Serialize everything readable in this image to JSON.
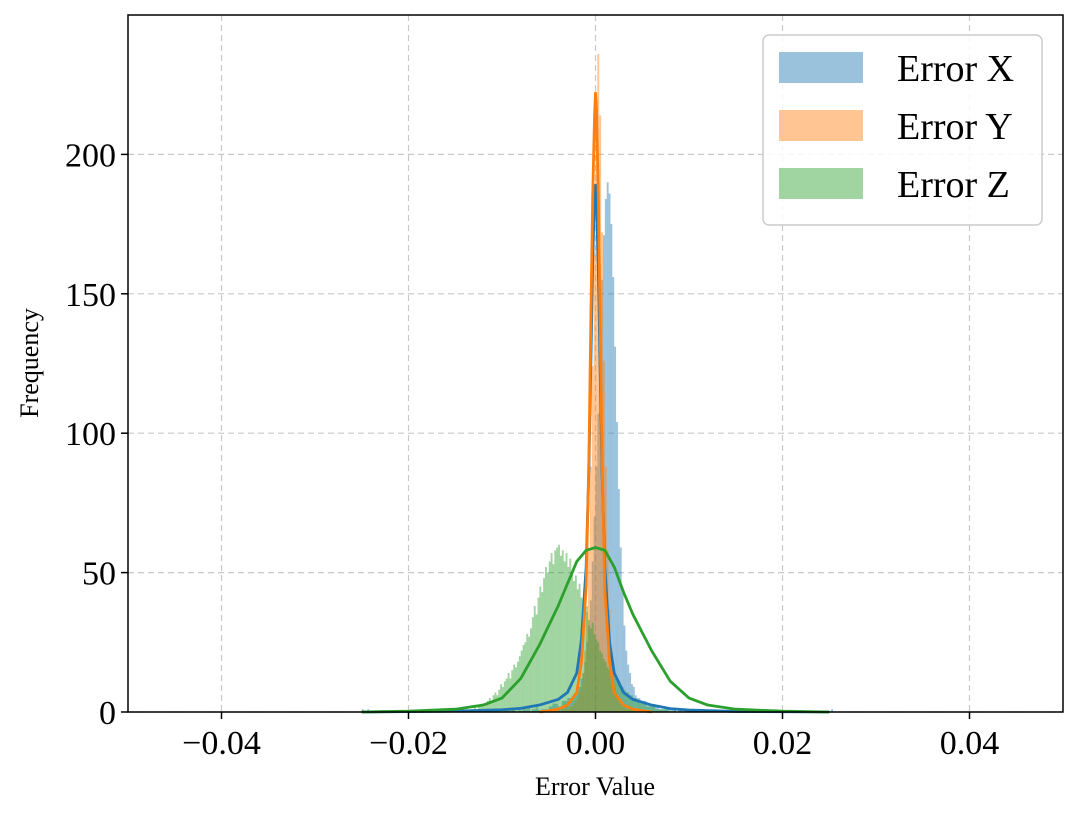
{
  "chart_data": {
    "type": "histogram",
    "title": "",
    "xlabel": "Error Value",
    "ylabel": "Frequency",
    "xlim": [
      -0.05,
      0.05
    ],
    "ylim": [
      0,
      250
    ],
    "x_ticks": [
      {
        "value": -0.04,
        "label": "−0.04"
      },
      {
        "value": -0.02,
        "label": "−0.02"
      },
      {
        "value": 0.0,
        "label": "0.00"
      },
      {
        "value": 0.02,
        "label": "0.02"
      },
      {
        "value": 0.04,
        "label": "0.04"
      }
    ],
    "y_ticks": [
      {
        "value": 0,
        "label": "0"
      },
      {
        "value": 50,
        "label": "50"
      },
      {
        "value": 100,
        "label": "100"
      },
      {
        "value": 150,
        "label": "150"
      },
      {
        "value": 200,
        "label": "200"
      }
    ],
    "grid": true,
    "legend_position": "top-right",
    "series": [
      {
        "name": "Error X",
        "color": "#1f77b4",
        "histogram": {
          "bin_start": -0.025,
          "bin_width": 0.0002,
          "counts": [
            1,
            0,
            0,
            1,
            0,
            0,
            0,
            0,
            0,
            0,
            0,
            0,
            0,
            0,
            0,
            0,
            0,
            0,
            0,
            0,
            0,
            0,
            0,
            0,
            0,
            0,
            0,
            0,
            0,
            0,
            0,
            0,
            0,
            0,
            0,
            0,
            0,
            0,
            1,
            0,
            0,
            0,
            0,
            0,
            1,
            0,
            0,
            0,
            0,
            0,
            0,
            0,
            0,
            0,
            0,
            0,
            0,
            0,
            0,
            1,
            1,
            0,
            0,
            0,
            0,
            1,
            0,
            0,
            1,
            0,
            0,
            1,
            1,
            0,
            0,
            0,
            1,
            1,
            1,
            0,
            1,
            1,
            0,
            0,
            1,
            0,
            1,
            1,
            1,
            2,
            0,
            1,
            1,
            2,
            1,
            0,
            1,
            1,
            1,
            1,
            2,
            2,
            3,
            3,
            3,
            2,
            2,
            4,
            4,
            4,
            5,
            5,
            4,
            5,
            6,
            10,
            9,
            12,
            14,
            18,
            25,
            31,
            40,
            54,
            70,
            88,
            107,
            132,
            155,
            171,
            184,
            190,
            186,
            175,
            156,
            131,
            104,
            80,
            59,
            43,
            31,
            22,
            17,
            14,
            10,
            9,
            6,
            5,
            5,
            4,
            4,
            4,
            3,
            3,
            3,
            2,
            2,
            2,
            2,
            1,
            1,
            1,
            1,
            1,
            1,
            0,
            1,
            1,
            0,
            1,
            1,
            0,
            1,
            1,
            0,
            1,
            0,
            0,
            1,
            0,
            0,
            1,
            0,
            0,
            0,
            0,
            0,
            0,
            1,
            0,
            0,
            0,
            0,
            0,
            0,
            0,
            0,
            0,
            0,
            0,
            0,
            0,
            0,
            0,
            0,
            0,
            0,
            0,
            0,
            0,
            0,
            0,
            0,
            0,
            0,
            0,
            0,
            0,
            0,
            0,
            0,
            1,
            0,
            0,
            0,
            0,
            0,
            0,
            0,
            0,
            0,
            0,
            0,
            0,
            0,
            0,
            0,
            0,
            0,
            0,
            0,
            0,
            0,
            0,
            0,
            0,
            0,
            0,
            0,
            0,
            0,
            1
          ]
        },
        "kde": {
          "x": [
            -0.025,
            -0.015,
            -0.01,
            -0.008,
            -0.006,
            -0.004,
            -0.003,
            -0.002,
            -0.0015,
            -0.001,
            -0.0007,
            -0.0005,
            -0.0003,
            -0.0001,
            0.0,
            0.0001,
            0.0003,
            0.0005,
            0.0007,
            0.001,
            0.0015,
            0.002,
            0.003,
            0.004,
            0.006,
            0.008,
            0.01,
            0.015,
            0.025
          ],
          "y": [
            0,
            0.3,
            0.8,
            1.3,
            2.5,
            4.5,
            7,
            14,
            26,
            52,
            88,
            125,
            162,
            186,
            189,
            184,
            160,
            122,
            86,
            52,
            25,
            14,
            7,
            4.5,
            2.5,
            1.2,
            0.7,
            0.2,
            0
          ]
        }
      },
      {
        "name": "Error Y",
        "color": "#ff7f0e",
        "histogram": {
          "bin_start": -0.01,
          "bin_width": 0.0002,
          "counts": [
            0,
            0,
            0,
            0,
            0,
            0,
            0,
            0,
            0,
            0,
            0,
            0,
            0,
            0,
            0,
            0,
            0,
            0,
            0,
            0,
            0,
            0,
            0,
            0,
            0,
            0,
            0,
            0,
            0,
            0,
            1,
            0,
            1,
            1,
            2,
            1,
            2,
            2,
            3,
            4,
            5,
            7,
            9,
            14,
            22,
            36,
            58,
            88,
            124,
            165,
            205,
            236,
            214,
            172,
            126,
            88,
            58,
            37,
            22,
            14,
            9,
            6,
            4,
            3,
            2,
            2,
            1,
            1,
            1,
            1,
            0,
            0,
            0,
            0,
            0,
            0,
            0,
            0,
            0,
            0,
            0,
            0,
            0,
            0,
            0,
            0,
            0,
            0,
            0,
            0,
            0,
            0,
            0,
            0,
            0,
            0,
            0,
            0,
            0,
            0
          ]
        },
        "kde": {
          "x": [
            -0.006,
            -0.004,
            -0.003,
            -0.002,
            -0.0015,
            -0.001,
            -0.0007,
            -0.0005,
            -0.0003,
            -0.0001,
            0.0,
            0.0001,
            0.0003,
            0.0005,
            0.0007,
            0.001,
            0.0015,
            0.002,
            0.003,
            0.004,
            0.006
          ],
          "y": [
            0,
            1,
            2.5,
            7,
            18,
            45,
            92,
            140,
            185,
            214,
            222,
            216,
            186,
            138,
            90,
            44,
            18,
            7,
            2.5,
            1,
            0
          ]
        }
      },
      {
        "name": "Error Z",
        "color": "#2ca02c",
        "histogram": {
          "bin_start": -0.014,
          "bin_width": 0.0002,
          "counts": [
            0,
            1,
            0,
            1,
            1,
            2,
            1,
            2,
            2,
            3,
            2,
            3,
            4,
            5,
            4,
            6,
            7,
            6,
            8,
            10,
            9,
            11,
            12,
            14,
            12,
            15,
            17,
            16,
            18,
            20,
            22,
            24,
            25,
            28,
            27,
            30,
            34,
            38,
            35,
            41,
            45,
            43,
            48,
            52,
            50,
            54,
            57,
            53,
            58,
            59,
            60,
            56,
            58,
            54,
            57,
            52,
            55,
            50,
            47,
            49,
            44,
            46,
            41,
            39,
            36,
            38,
            33,
            30,
            32,
            28,
            26,
            25,
            22,
            21,
            19,
            18,
            16,
            15,
            14,
            13,
            12,
            11,
            10,
            9,
            9,
            8,
            7,
            7,
            6,
            6,
            5,
            5,
            4,
            4,
            3,
            3,
            3,
            2,
            2,
            2,
            2,
            2,
            1,
            1,
            1,
            1,
            1,
            1,
            1,
            0,
            1,
            0,
            1,
            0,
            0,
            1,
            0,
            0,
            0,
            0
          ]
        },
        "kde": {
          "x": [
            -0.025,
            -0.02,
            -0.015,
            -0.012,
            -0.01,
            -0.008,
            -0.006,
            -0.004,
            -0.003,
            -0.002,
            -0.001,
            0.0,
            0.001,
            0.002,
            0.003,
            0.004,
            0.006,
            0.008,
            0.01,
            0.012,
            0.015,
            0.02,
            0.025
          ],
          "y": [
            0,
            0.3,
            1,
            2.5,
            5,
            12,
            24,
            38,
            46,
            54,
            58,
            59,
            58,
            52,
            43,
            35,
            22,
            11,
            5,
            2.5,
            1,
            0.3,
            0
          ]
        }
      }
    ]
  },
  "legend_title": ""
}
